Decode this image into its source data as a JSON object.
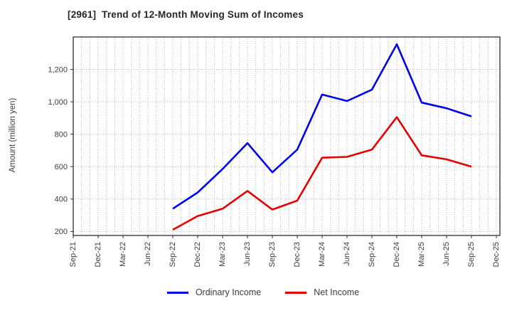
{
  "title": "[2961]  Trend of 12-Month Moving Sum of Incomes",
  "ylabel": "Amount (million yen)",
  "chart_data": {
    "type": "line",
    "categories": [
      "Sep-21",
      "Dec-21",
      "Mar-22",
      "Jun-22",
      "Sep-22",
      "Dec-22",
      "Mar-23",
      "Jun-23",
      "Sep-23",
      "Dec-23",
      "Mar-24",
      "Jun-24",
      "Sep-24",
      "Dec-24",
      "Mar-25",
      "Jun-25",
      "Sep-25",
      "Dec-25"
    ],
    "series": [
      {
        "name": "Ordinary Income",
        "color": "#0000ee",
        "values": [
          null,
          null,
          null,
          null,
          340,
          440,
          585,
          745,
          565,
          705,
          1045,
          1005,
          1075,
          1355,
          995,
          960,
          910,
          null
        ]
      },
      {
        "name": "Net Income",
        "color": "#e60000",
        "values": [
          null,
          null,
          null,
          null,
          210,
          295,
          340,
          450,
          335,
          390,
          655,
          660,
          705,
          905,
          670,
          645,
          600,
          null
        ]
      }
    ],
    "title": "[2961]  Trend of 12-Month Moving Sum of Incomes",
    "xlabel": "",
    "ylabel": "Amount (million yen)",
    "ylim": [
      175,
      1400
    ],
    "yticks": [
      200,
      400,
      600,
      800,
      1000,
      1200
    ],
    "grid": "dotted; horizontal every 200, vertical monthly minor lines",
    "legend_position": "bottom-center"
  }
}
